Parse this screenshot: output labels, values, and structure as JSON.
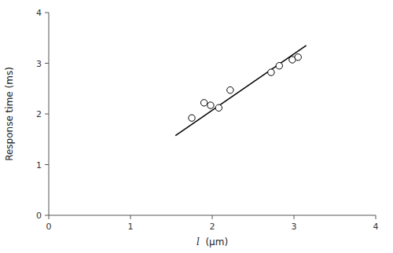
{
  "chart_data": {
    "type": "scatter",
    "xlabel": "l  (μm)",
    "ylabel": "Response time (ms)",
    "series": [
      {
        "type": "scatter",
        "x": [
          1.75,
          1.9,
          1.98,
          2.08,
          2.22,
          2.72,
          2.82,
          2.98,
          3.05
        ],
        "values": [
          1.92,
          2.22,
          2.17,
          2.12,
          2.47,
          2.82,
          2.95,
          3.07,
          3.12
        ],
        "color": "black",
        "marker": "circle-open"
      },
      {
        "type": "line",
        "x": [
          1.55,
          3.15
        ],
        "values": [
          1.57,
          3.35
        ],
        "color": "black"
      }
    ],
    "xlim": [
      0,
      4
    ],
    "ylim": [
      0,
      4
    ],
    "xticks": [
      0,
      1,
      2,
      3,
      4
    ],
    "yticks": [
      0,
      1,
      2,
      3,
      4
    ],
    "grid": false
  }
}
